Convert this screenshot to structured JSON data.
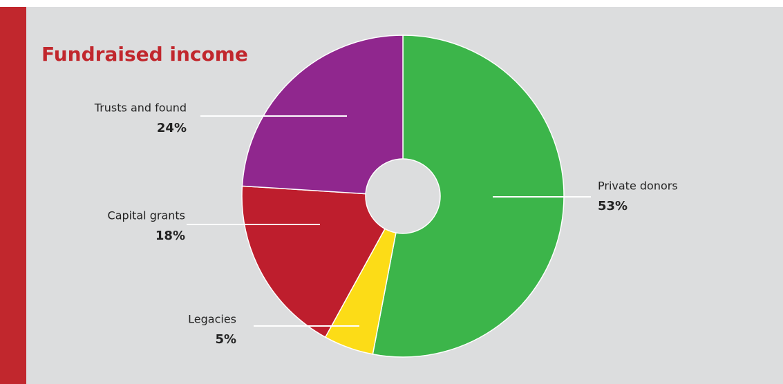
{
  "chart_data": {
    "type": "pie",
    "title": "Fundraised income",
    "categories": [
      "Private donors",
      "Legacies",
      "Capital grants",
      "Trusts and found"
    ],
    "values": [
      53,
      5,
      18,
      24
    ],
    "value_labels": [
      "53%",
      "5%",
      "18%",
      "24%"
    ],
    "colors": [
      "#3cb54a",
      "#fcdc17",
      "#be1e2d",
      "#90278e"
    ]
  }
}
